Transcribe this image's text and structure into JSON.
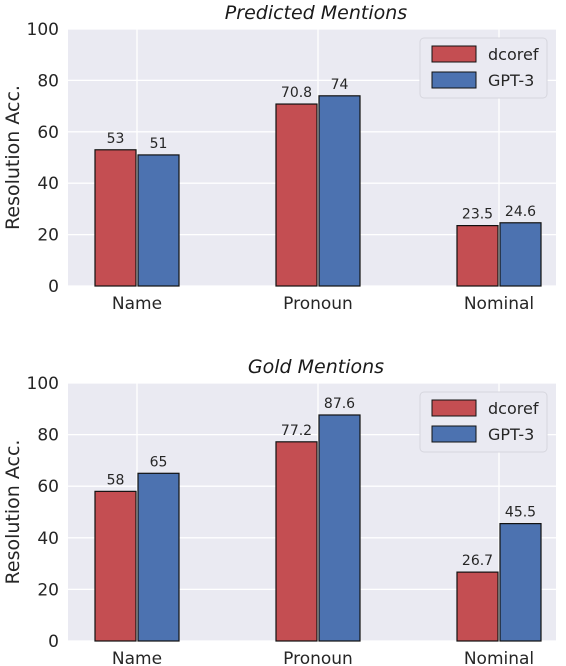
{
  "chart_data": [
    {
      "type": "bar",
      "title": "Predicted Mentions",
      "ylabel": "Resolution Acc.",
      "xlabel": "",
      "categories": [
        "Name",
        "Pronoun",
        "Nominal"
      ],
      "series": [
        {
          "name": "dcoref",
          "color": "#c44e52",
          "values": [
            53,
            70.8,
            23.5
          ]
        },
        {
          "name": "GPT-3",
          "color": "#4c72b0",
          "values": [
            51,
            74,
            24.6
          ]
        }
      ],
      "value_labels": [
        [
          "53",
          "70.8",
          "23.5"
        ],
        [
          "51",
          "74",
          "24.6"
        ]
      ],
      "yticks": [
        0,
        20,
        40,
        60,
        80,
        100
      ],
      "ylim": [
        0,
        100
      ],
      "grid": true,
      "legend": "top-right"
    },
    {
      "type": "bar",
      "title": "Gold Mentions",
      "ylabel": "Resolution Acc.",
      "xlabel": "",
      "categories": [
        "Name",
        "Pronoun",
        "Nominal"
      ],
      "series": [
        {
          "name": "dcoref",
          "color": "#c44e52",
          "values": [
            58,
            77.2,
            26.7
          ]
        },
        {
          "name": "GPT-3",
          "color": "#4c72b0",
          "values": [
            65,
            87.6,
            45.5
          ]
        }
      ],
      "value_labels": [
        [
          "58",
          "77.2",
          "26.7"
        ],
        [
          "65",
          "87.6",
          "45.5"
        ]
      ],
      "yticks": [
        0,
        20,
        40,
        60,
        80,
        100
      ],
      "ylim": [
        0,
        100
      ],
      "grid": true,
      "legend": "top-right"
    }
  ]
}
